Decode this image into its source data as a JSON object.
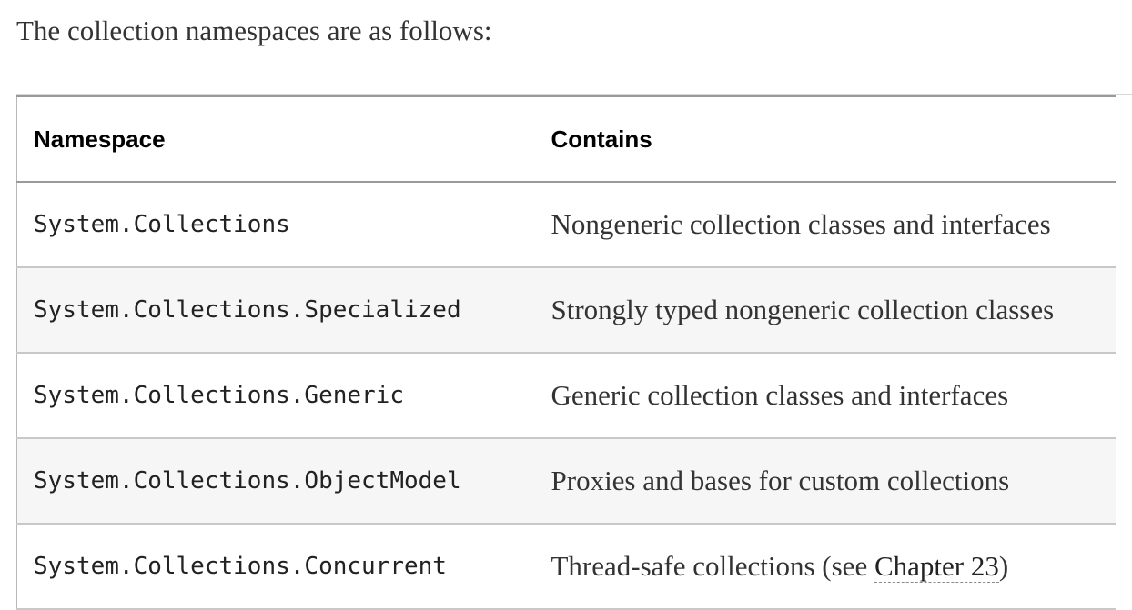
{
  "intro_text": "The collection namespaces are as follows:",
  "table": {
    "headers": {
      "namespace": "Namespace",
      "contains": "Contains"
    },
    "rows": [
      {
        "namespace": "System.Collections",
        "contains": "Nongeneric collection classes and interfaces"
      },
      {
        "namespace": "System.Collections.Specialized",
        "contains": "Strongly typed nongeneric collection classes"
      },
      {
        "namespace": "System.Collections.Generic",
        "contains": "Generic collection classes and interfaces"
      },
      {
        "namespace": "System.Collections.ObjectModel",
        "contains": "Proxies and bases for custom collections"
      },
      {
        "namespace": "System.Collections.Concurrent",
        "contains_prefix": "Thread-safe collections (see ",
        "contains_link": "Chapter 23",
        "contains_suffix": ")"
      }
    ]
  }
}
